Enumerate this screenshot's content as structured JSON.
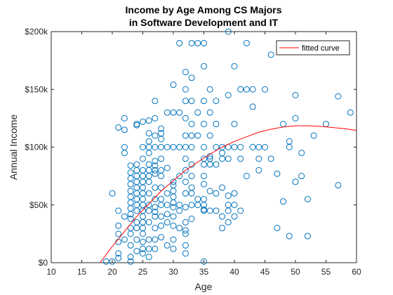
{
  "chart_data": {
    "type": "scatter",
    "title": [
      "Income by Age Among CS Majors",
      "in Software Development and IT"
    ],
    "xlabel": "Age",
    "ylabel": "Annual Income",
    "xlim": [
      10,
      60
    ],
    "ylim": [
      0,
      200000
    ],
    "xticks": [
      10,
      15,
      20,
      25,
      30,
      35,
      40,
      45,
      50,
      55,
      60
    ],
    "xtick_labels": [
      "10",
      "15",
      "20",
      "25",
      "30",
      "35",
      "40",
      "45",
      "50",
      "55",
      "60"
    ],
    "yticks": [
      0,
      50000,
      100000,
      150000,
      200000
    ],
    "ytick_labels": [
      "$0",
      "$50k",
      "$100k",
      "$150k",
      "$200k"
    ],
    "grid": false,
    "legend": {
      "location": "top-right",
      "entries": [
        "fitted curve"
      ]
    },
    "colors": {
      "scatter": "#0072bd",
      "fit": "#ff0000",
      "axes": "#262626"
    },
    "scatter_series": {
      "points": [
        [
          19,
          1000
        ],
        [
          20,
          1000
        ],
        [
          23,
          1000
        ],
        [
          35,
          1000
        ],
        [
          20,
          60000
        ],
        [
          21,
          45000
        ],
        [
          21,
          32000
        ],
        [
          21,
          25000
        ],
        [
          21,
          18000
        ],
        [
          21,
          8000
        ],
        [
          21,
          4000
        ],
        [
          21,
          117000
        ],
        [
          22,
          125000
        ],
        [
          22,
          115000
        ],
        [
          22,
          100000
        ],
        [
          22,
          95000
        ],
        [
          22,
          40000
        ],
        [
          22,
          20000
        ],
        [
          23,
          84000
        ],
        [
          23,
          78000
        ],
        [
          23,
          73000
        ],
        [
          23,
          68000
        ],
        [
          23,
          62000
        ],
        [
          23,
          57000
        ],
        [
          23,
          52000
        ],
        [
          23,
          47000
        ],
        [
          23,
          42000
        ],
        [
          23,
          38000
        ],
        [
          23,
          30000
        ],
        [
          23,
          25000
        ],
        [
          23,
          15000
        ],
        [
          23,
          5000
        ],
        [
          24,
          120000
        ],
        [
          24,
          119000
        ],
        [
          24,
          85000
        ],
        [
          24,
          80000
        ],
        [
          24,
          75000
        ],
        [
          24,
          70000
        ],
        [
          24,
          65000
        ],
        [
          24,
          60000
        ],
        [
          24,
          55000
        ],
        [
          24,
          50000
        ],
        [
          24,
          45000
        ],
        [
          24,
          35000
        ],
        [
          24,
          30000
        ],
        [
          24,
          20000
        ],
        [
          24,
          10000
        ],
        [
          25,
          122000
        ],
        [
          25,
          100000
        ],
        [
          25,
          90000
        ],
        [
          25,
          80000
        ],
        [
          25,
          75000
        ],
        [
          25,
          70000
        ],
        [
          25,
          65000
        ],
        [
          25,
          60000
        ],
        [
          25,
          55000
        ],
        [
          25,
          50000
        ],
        [
          25,
          45000
        ],
        [
          25,
          40000
        ],
        [
          25,
          35000
        ],
        [
          25,
          30000
        ],
        [
          25,
          25000
        ],
        [
          25,
          18000
        ],
        [
          25,
          12000
        ],
        [
          25,
          8000
        ],
        [
          26,
          123000
        ],
        [
          26,
          112000
        ],
        [
          26,
          105000
        ],
        [
          26,
          100000
        ],
        [
          26,
          95000
        ],
        [
          26,
          85000
        ],
        [
          26,
          80000
        ],
        [
          26,
          75000
        ],
        [
          26,
          70000
        ],
        [
          26,
          60000
        ],
        [
          26,
          50000
        ],
        [
          26,
          45000
        ],
        [
          26,
          35000
        ],
        [
          26,
          20000
        ],
        [
          26,
          12000
        ],
        [
          26,
          5000
        ],
        [
          27,
          140000
        ],
        [
          27,
          125000
        ],
        [
          27,
          110000
        ],
        [
          27,
          100000
        ],
        [
          27,
          88000
        ],
        [
          27,
          84000
        ],
        [
          27,
          80000
        ],
        [
          27,
          77000
        ],
        [
          27,
          65000
        ],
        [
          27,
          55000
        ],
        [
          27,
          48000
        ],
        [
          27,
          44000
        ],
        [
          27,
          40000
        ],
        [
          27,
          30000
        ],
        [
          27,
          20000
        ],
        [
          27,
          12000
        ],
        [
          28,
          116000
        ],
        [
          28,
          112000
        ],
        [
          28,
          107000
        ],
        [
          28,
          100000
        ],
        [
          28,
          90000
        ],
        [
          28,
          80000
        ],
        [
          28,
          75000
        ],
        [
          28,
          65000
        ],
        [
          28,
          55000
        ],
        [
          28,
          50000
        ],
        [
          28,
          40000
        ],
        [
          28,
          32000
        ],
        [
          28,
          22000
        ],
        [
          29,
          130000
        ],
        [
          29,
          100000
        ],
        [
          29,
          82000
        ],
        [
          29,
          60000
        ],
        [
          29,
          50000
        ],
        [
          29,
          42000
        ],
        [
          29,
          35000
        ],
        [
          29,
          15000
        ],
        [
          30,
          154000
        ],
        [
          30,
          130000
        ],
        [
          30,
          100000
        ],
        [
          30,
          70000
        ],
        [
          30,
          67000
        ],
        [
          30,
          62000
        ],
        [
          30,
          57000
        ],
        [
          30,
          52000
        ],
        [
          30,
          48000
        ],
        [
          30,
          40000
        ],
        [
          30,
          32000
        ],
        [
          30,
          20000
        ],
        [
          30,
          12000
        ],
        [
          31,
          190000
        ],
        [
          31,
          130000
        ],
        [
          31,
          100000
        ],
        [
          31,
          75000
        ],
        [
          31,
          50000
        ],
        [
          31,
          45000
        ],
        [
          31,
          30000
        ],
        [
          32,
          165000
        ],
        [
          32,
          150000
        ],
        [
          32,
          140000
        ],
        [
          32,
          125000
        ],
        [
          32,
          110000
        ],
        [
          32,
          100000
        ],
        [
          32,
          90000
        ],
        [
          32,
          80000
        ],
        [
          32,
          70000
        ],
        [
          32,
          60000
        ],
        [
          32,
          48000
        ],
        [
          32,
          35000
        ],
        [
          32,
          28000
        ],
        [
          32,
          25000
        ],
        [
          32,
          15000
        ],
        [
          32,
          8000
        ],
        [
          33,
          190000
        ],
        [
          33,
          160000
        ],
        [
          33,
          140000
        ],
        [
          33,
          120000
        ],
        [
          33,
          110000
        ],
        [
          33,
          100000
        ],
        [
          33,
          85000
        ],
        [
          33,
          75000
        ],
        [
          33,
          65000
        ],
        [
          33,
          60000
        ],
        [
          33,
          50000
        ],
        [
          33,
          38000
        ],
        [
          34,
          190000
        ],
        [
          34,
          130000
        ],
        [
          34,
          110000
        ],
        [
          34,
          55000
        ],
        [
          34,
          50000
        ],
        [
          35,
          190000
        ],
        [
          35,
          170000
        ],
        [
          35,
          140000
        ],
        [
          35,
          120000
        ],
        [
          35,
          100000
        ],
        [
          35,
          90000
        ],
        [
          35,
          85000
        ],
        [
          35,
          75000
        ],
        [
          35,
          68000
        ],
        [
          35,
          55000
        ],
        [
          35,
          50000
        ],
        [
          35,
          46000
        ],
        [
          35,
          45000
        ],
        [
          36,
          150000
        ],
        [
          36,
          130000
        ],
        [
          36,
          110000
        ],
        [
          36,
          92000
        ],
        [
          36,
          90000
        ],
        [
          36,
          85000
        ],
        [
          36,
          62000
        ],
        [
          36,
          45000
        ],
        [
          37,
          140000
        ],
        [
          37,
          120000
        ],
        [
          37,
          100000
        ],
        [
          37,
          85000
        ],
        [
          37,
          60000
        ],
        [
          37,
          45000
        ],
        [
          38,
          100000
        ],
        [
          38,
          95000
        ],
        [
          38,
          90000
        ],
        [
          38,
          65000
        ],
        [
          38,
          40000
        ],
        [
          38,
          30000
        ],
        [
          39,
          200000
        ],
        [
          39,
          145000
        ],
        [
          39,
          100000
        ],
        [
          39,
          90000
        ],
        [
          39,
          58000
        ],
        [
          39,
          50000
        ],
        [
          39,
          45000
        ],
        [
          39,
          35000
        ],
        [
          40,
          170000
        ],
        [
          40,
          120000
        ],
        [
          40,
          100000
        ],
        [
          40,
          60000
        ],
        [
          40,
          50000
        ],
        [
          40,
          40000
        ],
        [
          41,
          150000
        ],
        [
          41,
          100000
        ],
        [
          41,
          90000
        ],
        [
          41,
          45000
        ],
        [
          42,
          190000
        ],
        [
          42,
          150000
        ],
        [
          42,
          75000
        ],
        [
          43,
          100000
        ],
        [
          43,
          135000
        ],
        [
          43,
          150000
        ],
        [
          44,
          90000
        ],
        [
          44,
          80000
        ],
        [
          44,
          100000
        ],
        [
          45,
          150000
        ],
        [
          45,
          100000
        ],
        [
          46,
          180000
        ],
        [
          46,
          90000
        ],
        [
          47,
          77000
        ],
        [
          47,
          30000
        ],
        [
          48,
          120000
        ],
        [
          48,
          53000
        ],
        [
          49,
          105000
        ],
        [
          49,
          100000
        ],
        [
          49,
          23000
        ],
        [
          50,
          145000
        ],
        [
          50,
          125000
        ],
        [
          50,
          70000
        ],
        [
          51,
          95000
        ],
        [
          51,
          75000
        ],
        [
          52,
          23000
        ],
        [
          52,
          55000
        ],
        [
          53,
          110000
        ],
        [
          55,
          120000
        ],
        [
          57,
          144000
        ],
        [
          57,
          67000
        ],
        [
          59,
          130000
        ]
      ]
    },
    "fit_series": {
      "name": "fitted curve",
      "x": [
        18,
        20,
        22,
        24,
        26,
        28,
        30,
        32,
        34,
        36,
        38,
        40,
        42,
        44,
        46,
        48,
        50,
        52,
        54,
        56,
        58,
        60
      ],
      "y": [
        0,
        14000,
        27000,
        40000,
        51000,
        62000,
        71000,
        80000,
        87000,
        94000,
        100000,
        105000,
        109000,
        113000,
        115500,
        117500,
        118500,
        118500,
        118000,
        117000,
        116000,
        114500
      ]
    }
  }
}
